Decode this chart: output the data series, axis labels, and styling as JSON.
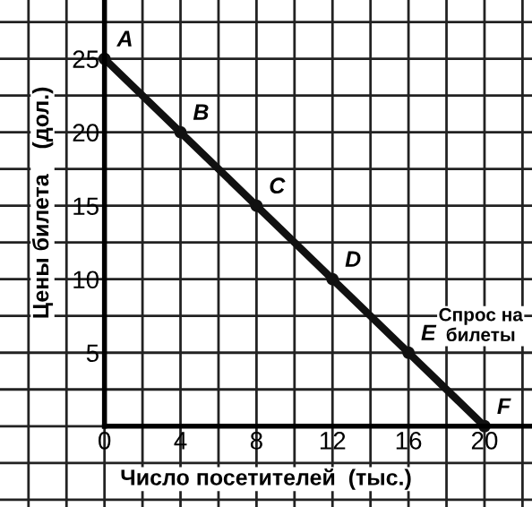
{
  "chart_data": {
    "type": "line",
    "xlabel": "Число посетителей  (тыс.)",
    "ylabel": "Цены билета    (дол.)",
    "x": [
      0,
      4,
      8,
      12,
      16,
      20
    ],
    "series": [
      {
        "name": "Спрос на билеты",
        "color": "#111111",
        "values": [
          25,
          20,
          15,
          10,
          5,
          0
        ]
      }
    ],
    "marker": "circle",
    "line_style": "solid",
    "grid": true,
    "legend": false,
    "xlim": [
      -5.5,
      22.5
    ],
    "ylim": [
      -5.5,
      29
    ],
    "xticks": [
      {
        "value": -4,
        "label": null
      },
      {
        "value": -2,
        "label": null
      },
      0,
      {
        "value": 2,
        "label": null
      },
      4,
      {
        "value": 6,
        "label": null
      },
      8,
      {
        "value": 10,
        "label": null
      },
      12,
      {
        "value": 14,
        "label": null
      },
      16,
      {
        "value": 18,
        "label": null
      },
      20,
      {
        "value": 22,
        "label": null
      }
    ],
    "yticks": [
      {
        "value": -5,
        "label": null
      },
      {
        "value": -2.5,
        "label": null
      },
      {
        "value": 0,
        "label": null
      },
      {
        "value": 2.5,
        "label": null
      },
      5,
      {
        "value": 7.5,
        "label": null
      },
      10,
      {
        "value": 12.5,
        "label": null
      },
      15,
      {
        "value": 17.5,
        "label": null
      },
      20,
      {
        "value": 22.5,
        "label": null
      },
      25,
      {
        "value": 27.5,
        "label": null
      }
    ],
    "annotations": [
      {
        "text": "A",
        "x": 0,
        "y": 25
      },
      {
        "text": "B",
        "x": 4,
        "y": 20
      },
      {
        "text": "C",
        "x": 8,
        "y": 15
      },
      {
        "text": "D",
        "x": 12,
        "y": 10
      },
      {
        "text": "E",
        "x": 16,
        "y": 5
      },
      {
        "text": "F",
        "x": 20,
        "y": 0
      }
    ]
  }
}
